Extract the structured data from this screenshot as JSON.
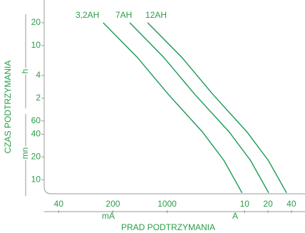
{
  "chart_data": {
    "type": "line",
    "xlabel": "PRAD PODTRZYMANIA",
    "ylabel": "CZAS PODTRZYMANIA",
    "x_units": [
      "mA",
      "A"
    ],
    "y_units": [
      "h",
      "mn"
    ],
    "xscale": "log",
    "yscale": "log",
    "xlim": [
      26,
      60000
    ],
    "ylim": [
      6.5,
      2400
    ],
    "xticks": [
      40,
      200,
      1000,
      {
        "value": 10000,
        "label": "10"
      },
      {
        "value": 20000,
        "label": "20"
      },
      {
        "value": 40000,
        "label": "40"
      }
    ],
    "yticks": [
      {
        "value": 1200,
        "label": "20"
      },
      {
        "value": 600,
        "label": "10"
      },
      {
        "value": 240,
        "label": "4"
      },
      {
        "value": 120,
        "label": "2"
      },
      60,
      40,
      20,
      10
    ],
    "series": [
      {
        "name": "3,2AH",
        "color": "#1a9a55",
        "x": [
          150,
          410,
          1050,
          2850,
          5400,
          9250
        ],
        "values": [
          1200,
          420,
          133,
          43,
          18,
          6.7
        ]
      },
      {
        "name": "7AH",
        "color": "#1a9a55",
        "x": [
          330,
          900,
          2300,
          6300,
          11900,
          20400
        ],
        "values": [
          1200,
          420,
          133,
          43,
          18,
          6.7
        ]
      },
      {
        "name": "12AH",
        "color": "#1a9a55",
        "x": [
          560,
          1540,
          3940,
          10700,
          20200,
          34700
        ],
        "values": [
          1200,
          420,
          133,
          43,
          18,
          6.7
        ]
      }
    ]
  }
}
